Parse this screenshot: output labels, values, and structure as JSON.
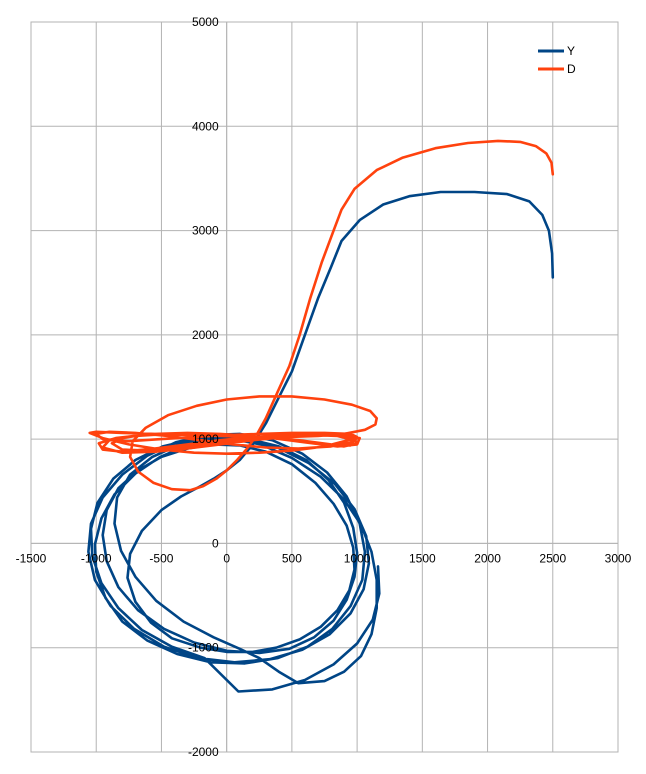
{
  "chart_data": {
    "type": "line",
    "title": "",
    "xlabel": "",
    "ylabel": "",
    "xlim": [
      -1500,
      3000
    ],
    "ylim": [
      -2000,
      5000
    ],
    "x_ticks": [
      -1500,
      -1000,
      -500,
      0,
      500,
      1000,
      1500,
      2000,
      2500,
      3000
    ],
    "y_ticks": [
      -2000,
      -1000,
      0,
      1000,
      2000,
      3000,
      4000,
      5000
    ],
    "grid": true,
    "legend_position": "top-right",
    "background": "#ffffff",
    "grid_color": "#b3b3b3",
    "series": [
      {
        "name": "Y",
        "color": "#004586",
        "points": [
          [
            2500,
            2550
          ],
          [
            2495,
            2780
          ],
          [
            2470,
            3000
          ],
          [
            2420,
            3150
          ],
          [
            2320,
            3280
          ],
          [
            2150,
            3350
          ],
          [
            1900,
            3370
          ],
          [
            1640,
            3370
          ],
          [
            1400,
            3330
          ],
          [
            1200,
            3250
          ],
          [
            1020,
            3100
          ],
          [
            880,
            2900
          ],
          [
            800,
            2650
          ],
          [
            700,
            2350
          ],
          [
            600,
            2000
          ],
          [
            500,
            1650
          ],
          [
            400,
            1400
          ],
          [
            300,
            1150
          ],
          [
            200,
            950
          ],
          [
            100,
            800
          ],
          [
            0,
            700
          ],
          [
            -100,
            620
          ],
          [
            -200,
            550
          ],
          [
            -350,
            450
          ],
          [
            -500,
            320
          ],
          [
            -650,
            120
          ],
          [
            -740,
            -100
          ],
          [
            -760,
            -330
          ],
          [
            -700,
            -560
          ],
          [
            -580,
            -760
          ],
          [
            -420,
            -910
          ],
          [
            -200,
            -1000
          ],
          [
            0,
            -1040
          ],
          [
            200,
            -1040
          ],
          [
            380,
            -1000
          ],
          [
            560,
            -920
          ],
          [
            720,
            -800
          ],
          [
            850,
            -640
          ],
          [
            940,
            -450
          ],
          [
            980,
            -250
          ],
          [
            970,
            -40
          ],
          [
            920,
            170
          ],
          [
            820,
            380
          ],
          [
            680,
            580
          ],
          [
            500,
            760
          ],
          [
            300,
            880
          ],
          [
            100,
            940
          ],
          [
            -100,
            950
          ],
          [
            -300,
            910
          ],
          [
            -500,
            830
          ],
          [
            -680,
            700
          ],
          [
            -830,
            530
          ],
          [
            -920,
            320
          ],
          [
            -950,
            80
          ],
          [
            -920,
            -170
          ],
          [
            -830,
            -420
          ],
          [
            -680,
            -640
          ],
          [
            -480,
            -820
          ],
          [
            -250,
            -950
          ],
          [
            0,
            -1030
          ],
          [
            250,
            -1050
          ],
          [
            480,
            -1010
          ],
          [
            670,
            -900
          ],
          [
            820,
            -740
          ],
          [
            920,
            -540
          ],
          [
            980,
            -320
          ],
          [
            1000,
            -90
          ],
          [
            970,
            150
          ],
          [
            900,
            390
          ],
          [
            780,
            610
          ],
          [
            610,
            800
          ],
          [
            400,
            930
          ],
          [
            170,
            1000
          ],
          [
            -70,
            1000
          ],
          [
            -300,
            940
          ],
          [
            -510,
            830
          ],
          [
            -700,
            670
          ],
          [
            -860,
            470
          ],
          [
            -960,
            240
          ],
          [
            -1010,
            -10
          ],
          [
            -1000,
            -270
          ],
          [
            -930,
            -520
          ],
          [
            -800,
            -750
          ],
          [
            -610,
            -930
          ],
          [
            -380,
            -1060
          ],
          [
            -120,
            -1140
          ],
          [
            140,
            -1150
          ],
          [
            390,
            -1100
          ],
          [
            620,
            -990
          ],
          [
            810,
            -820
          ],
          [
            950,
            -600
          ],
          [
            1040,
            -350
          ],
          [
            1060,
            -80
          ],
          [
            1020,
            190
          ],
          [
            920,
            450
          ],
          [
            770,
            680
          ],
          [
            580,
            860
          ],
          [
            350,
            990
          ],
          [
            100,
            1050
          ],
          [
            -150,
            1040
          ],
          [
            -390,
            970
          ],
          [
            -610,
            840
          ],
          [
            -800,
            660
          ],
          [
            -950,
            440
          ],
          [
            -1040,
            190
          ],
          [
            -1060,
            -80
          ],
          [
            -1010,
            -350
          ],
          [
            -890,
            -600
          ],
          [
            -710,
            -820
          ],
          [
            -480,
            -990
          ],
          [
            -220,
            -1100
          ],
          [
            60,
            -1140
          ],
          [
            330,
            -1110
          ],
          [
            580,
            -1020
          ],
          [
            790,
            -870
          ],
          [
            950,
            -670
          ],
          [
            1050,
            -440
          ],
          [
            1090,
            -190
          ],
          [
            1070,
            70
          ],
          [
            980,
            330
          ],
          [
            830,
            570
          ],
          [
            630,
            770
          ],
          [
            390,
            920
          ],
          [
            130,
            1000
          ],
          [
            -120,
            1010
          ],
          [
            -360,
            950
          ],
          [
            -570,
            830
          ],
          [
            -740,
            660
          ],
          [
            -840,
            440
          ],
          [
            -860,
            190
          ],
          [
            -810,
            -70
          ],
          [
            -700,
            -320
          ],
          [
            -540,
            -550
          ],
          [
            -330,
            -750
          ],
          [
            -100,
            -900
          ],
          [
            100,
            -1010
          ],
          [
            250,
            -1100
          ],
          [
            400,
            -1230
          ],
          [
            550,
            -1340
          ],
          [
            750,
            -1320
          ],
          [
            900,
            -1230
          ],
          [
            1030,
            -1080
          ],
          [
            1110,
            -870
          ],
          [
            1150,
            -620
          ],
          [
            1150,
            -350
          ],
          [
            1110,
            -80
          ],
          [
            1030,
            180
          ],
          [
            900,
            420
          ],
          [
            720,
            640
          ],
          [
            500,
            820
          ],
          [
            260,
            950
          ],
          [
            0,
            1010
          ],
          [
            -250,
            1000
          ],
          [
            -490,
            930
          ],
          [
            -700,
            800
          ],
          [
            -870,
            620
          ],
          [
            -990,
            390
          ],
          [
            -1040,
            140
          ],
          [
            -1030,
            -120
          ],
          [
            -960,
            -380
          ],
          [
            -830,
            -620
          ],
          [
            -650,
            -830
          ],
          [
            -420,
            -990
          ],
          [
            -170,
            -1100
          ],
          [
            90,
            -1420
          ],
          [
            350,
            -1400
          ],
          [
            600,
            -1310
          ],
          [
            820,
            -1160
          ],
          [
            1000,
            -960
          ],
          [
            1120,
            -730
          ],
          [
            1170,
            -480
          ],
          [
            1160,
            -220
          ]
        ]
      },
      {
        "name": "D",
        "color": "#ff420e",
        "points": [
          [
            2500,
            3540
          ],
          [
            2490,
            3650
          ],
          [
            2450,
            3740
          ],
          [
            2370,
            3810
          ],
          [
            2250,
            3850
          ],
          [
            2080,
            3860
          ],
          [
            1850,
            3840
          ],
          [
            1600,
            3790
          ],
          [
            1350,
            3700
          ],
          [
            1150,
            3580
          ],
          [
            980,
            3400
          ],
          [
            880,
            3200
          ],
          [
            820,
            3000
          ],
          [
            730,
            2700
          ],
          [
            640,
            2350
          ],
          [
            560,
            2000
          ],
          [
            480,
            1700
          ],
          [
            390,
            1450
          ],
          [
            300,
            1200
          ],
          [
            220,
            1020
          ],
          [
            150,
            900
          ],
          [
            80,
            800
          ],
          [
            0,
            700
          ],
          [
            -80,
            620
          ],
          [
            -180,
            550
          ],
          [
            -280,
            510
          ],
          [
            -420,
            520
          ],
          [
            -560,
            580
          ],
          [
            -680,
            690
          ],
          [
            -740,
            830
          ],
          [
            -720,
            980
          ],
          [
            -620,
            1110
          ],
          [
            -450,
            1230
          ],
          [
            -230,
            1320
          ],
          [
            0,
            1380
          ],
          [
            250,
            1410
          ],
          [
            500,
            1410
          ],
          [
            750,
            1380
          ],
          [
            960,
            1330
          ],
          [
            1100,
            1270
          ],
          [
            1150,
            1200
          ],
          [
            1140,
            1140
          ],
          [
            1060,
            1090
          ],
          [
            900,
            1050
          ],
          [
            700,
            1030
          ],
          [
            450,
            1020
          ],
          [
            200,
            1020
          ],
          [
            -50,
            1030
          ],
          [
            -300,
            1040
          ],
          [
            -550,
            1050
          ],
          [
            -800,
            1060
          ],
          [
            -1000,
            1070
          ],
          [
            -1050,
            1060
          ],
          [
            -950,
            1010
          ],
          [
            -750,
            950
          ],
          [
            -500,
            900
          ],
          [
            -250,
            870
          ],
          [
            0,
            860
          ],
          [
            250,
            870
          ],
          [
            500,
            890
          ],
          [
            750,
            930
          ],
          [
            900,
            980
          ],
          [
            1000,
            1020
          ],
          [
            950,
            1050
          ],
          [
            750,
            1060
          ],
          [
            500,
            1060
          ],
          [
            250,
            1050
          ],
          [
            0,
            1040
          ],
          [
            -250,
            1020
          ],
          [
            -500,
            1000
          ],
          [
            -750,
            980
          ],
          [
            -950,
            1000
          ],
          [
            -1000,
            1050
          ],
          [
            -900,
            1070
          ],
          [
            -700,
            1060
          ],
          [
            -450,
            1030
          ],
          [
            -200,
            990
          ],
          [
            50,
            950
          ],
          [
            300,
            920
          ],
          [
            550,
            910
          ],
          [
            800,
            930
          ],
          [
            950,
            970
          ],
          [
            1000,
            1010
          ],
          [
            900,
            1040
          ],
          [
            700,
            1050
          ],
          [
            450,
            1040
          ],
          [
            200,
            1020
          ],
          [
            -50,
            990
          ],
          [
            -300,
            950
          ],
          [
            -550,
            910
          ],
          [
            -800,
            880
          ],
          [
            -950,
            900
          ],
          [
            -980,
            960
          ],
          [
            -850,
            1010
          ],
          [
            -650,
            1040
          ],
          [
            -400,
            1050
          ],
          [
            -150,
            1050
          ],
          [
            100,
            1040
          ],
          [
            350,
            1010
          ],
          [
            600,
            970
          ],
          [
            850,
            930
          ],
          [
            1000,
            950
          ],
          [
            1020,
            1010
          ],
          [
            900,
            1040
          ],
          [
            700,
            1040
          ],
          [
            450,
            1020
          ],
          [
            200,
            990
          ],
          [
            -50,
            950
          ],
          [
            -300,
            910
          ],
          [
            -550,
            880
          ],
          [
            -800,
            870
          ],
          [
            -950,
            920
          ],
          [
            -900,
            990
          ],
          [
            -700,
            1030
          ],
          [
            -450,
            1050
          ],
          [
            -200,
            1050
          ],
          [
            50,
            1040
          ],
          [
            300,
            1020
          ],
          [
            550,
            990
          ],
          [
            800,
            950
          ],
          [
            950,
            940
          ],
          [
            980,
            990
          ],
          [
            850,
            1030
          ],
          [
            650,
            1040
          ],
          [
            400,
            1030
          ],
          [
            150,
            1000
          ],
          [
            -100,
            960
          ],
          [
            -350,
            920
          ],
          [
            -600,
            890
          ],
          [
            -800,
            900
          ],
          [
            -880,
            960
          ],
          [
            -780,
            1020
          ],
          [
            -550,
            1050
          ],
          [
            -300,
            1060
          ],
          [
            -50,
            1050
          ],
          [
            200,
            1030
          ],
          [
            450,
            1000
          ],
          [
            700,
            960
          ],
          [
            900,
            930
          ],
          [
            1000,
            960
          ],
          [
            970,
            1020
          ],
          [
            820,
            1050
          ]
        ]
      }
    ]
  }
}
